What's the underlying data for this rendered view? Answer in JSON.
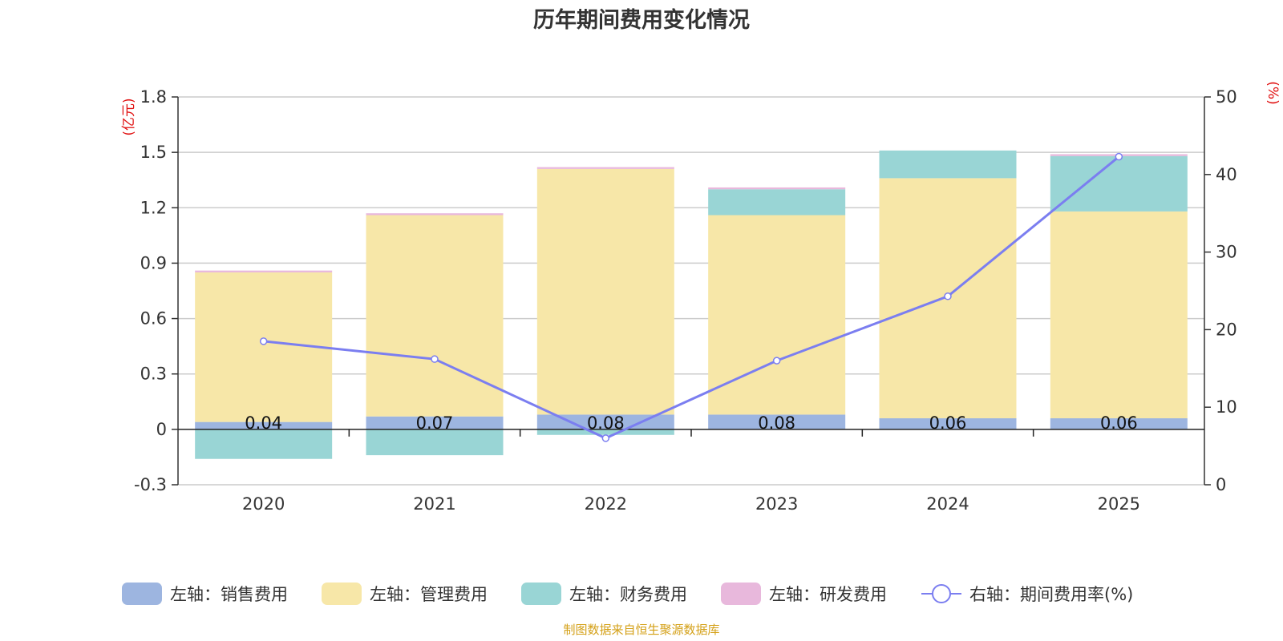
{
  "chart_data": {
    "type": "bar",
    "title": "历年期间费用变化情况",
    "categories": [
      "2020",
      "2021",
      "2022",
      "2023",
      "2024",
      "2025"
    ],
    "left_axis": {
      "unit": "(亿元)",
      "ylim": [
        -0.3,
        1.8
      ],
      "ticks": [
        "1.8",
        "1.5",
        "1.2",
        "0.9",
        "0.6",
        "0.3",
        "0",
        "-0.3"
      ]
    },
    "right_axis": {
      "unit": "(%)",
      "ylim": [
        0,
        50
      ],
      "ticks": [
        "50",
        "40",
        "30",
        "20",
        "10",
        "0"
      ]
    },
    "series": [
      {
        "name": "左轴：销售费用",
        "axis": "left",
        "color": "#9db5e0",
        "values": [
          0.04,
          0.07,
          0.08,
          0.08,
          0.06,
          0.06
        ],
        "labels": [
          "0.04",
          "0.07",
          "0.08",
          "0.08",
          "0.06",
          "0.06"
        ]
      },
      {
        "name": "左轴：管理费用",
        "axis": "left",
        "color": "#f7e7a8",
        "values": [
          0.81,
          1.09,
          1.33,
          1.08,
          1.3,
          1.12
        ]
      },
      {
        "name": "左轴：财务费用",
        "axis": "left",
        "color": "#99d5d5",
        "values": [
          -0.16,
          -0.14,
          -0.03,
          0.14,
          0.15,
          0.3
        ]
      },
      {
        "name": "左轴：研发费用",
        "axis": "left",
        "color": "#e8b8dc",
        "values": [
          0.01,
          0.01,
          0.01,
          0.01,
          0.0,
          0.01
        ]
      },
      {
        "name": "右轴：期间费用率(%)",
        "axis": "right",
        "color": "#7b7ef0",
        "type": "line",
        "values": [
          18.5,
          16.2,
          6.0,
          16.0,
          24.3,
          42.3
        ]
      }
    ]
  },
  "source_note": "制图数据来自恒生聚源数据库"
}
